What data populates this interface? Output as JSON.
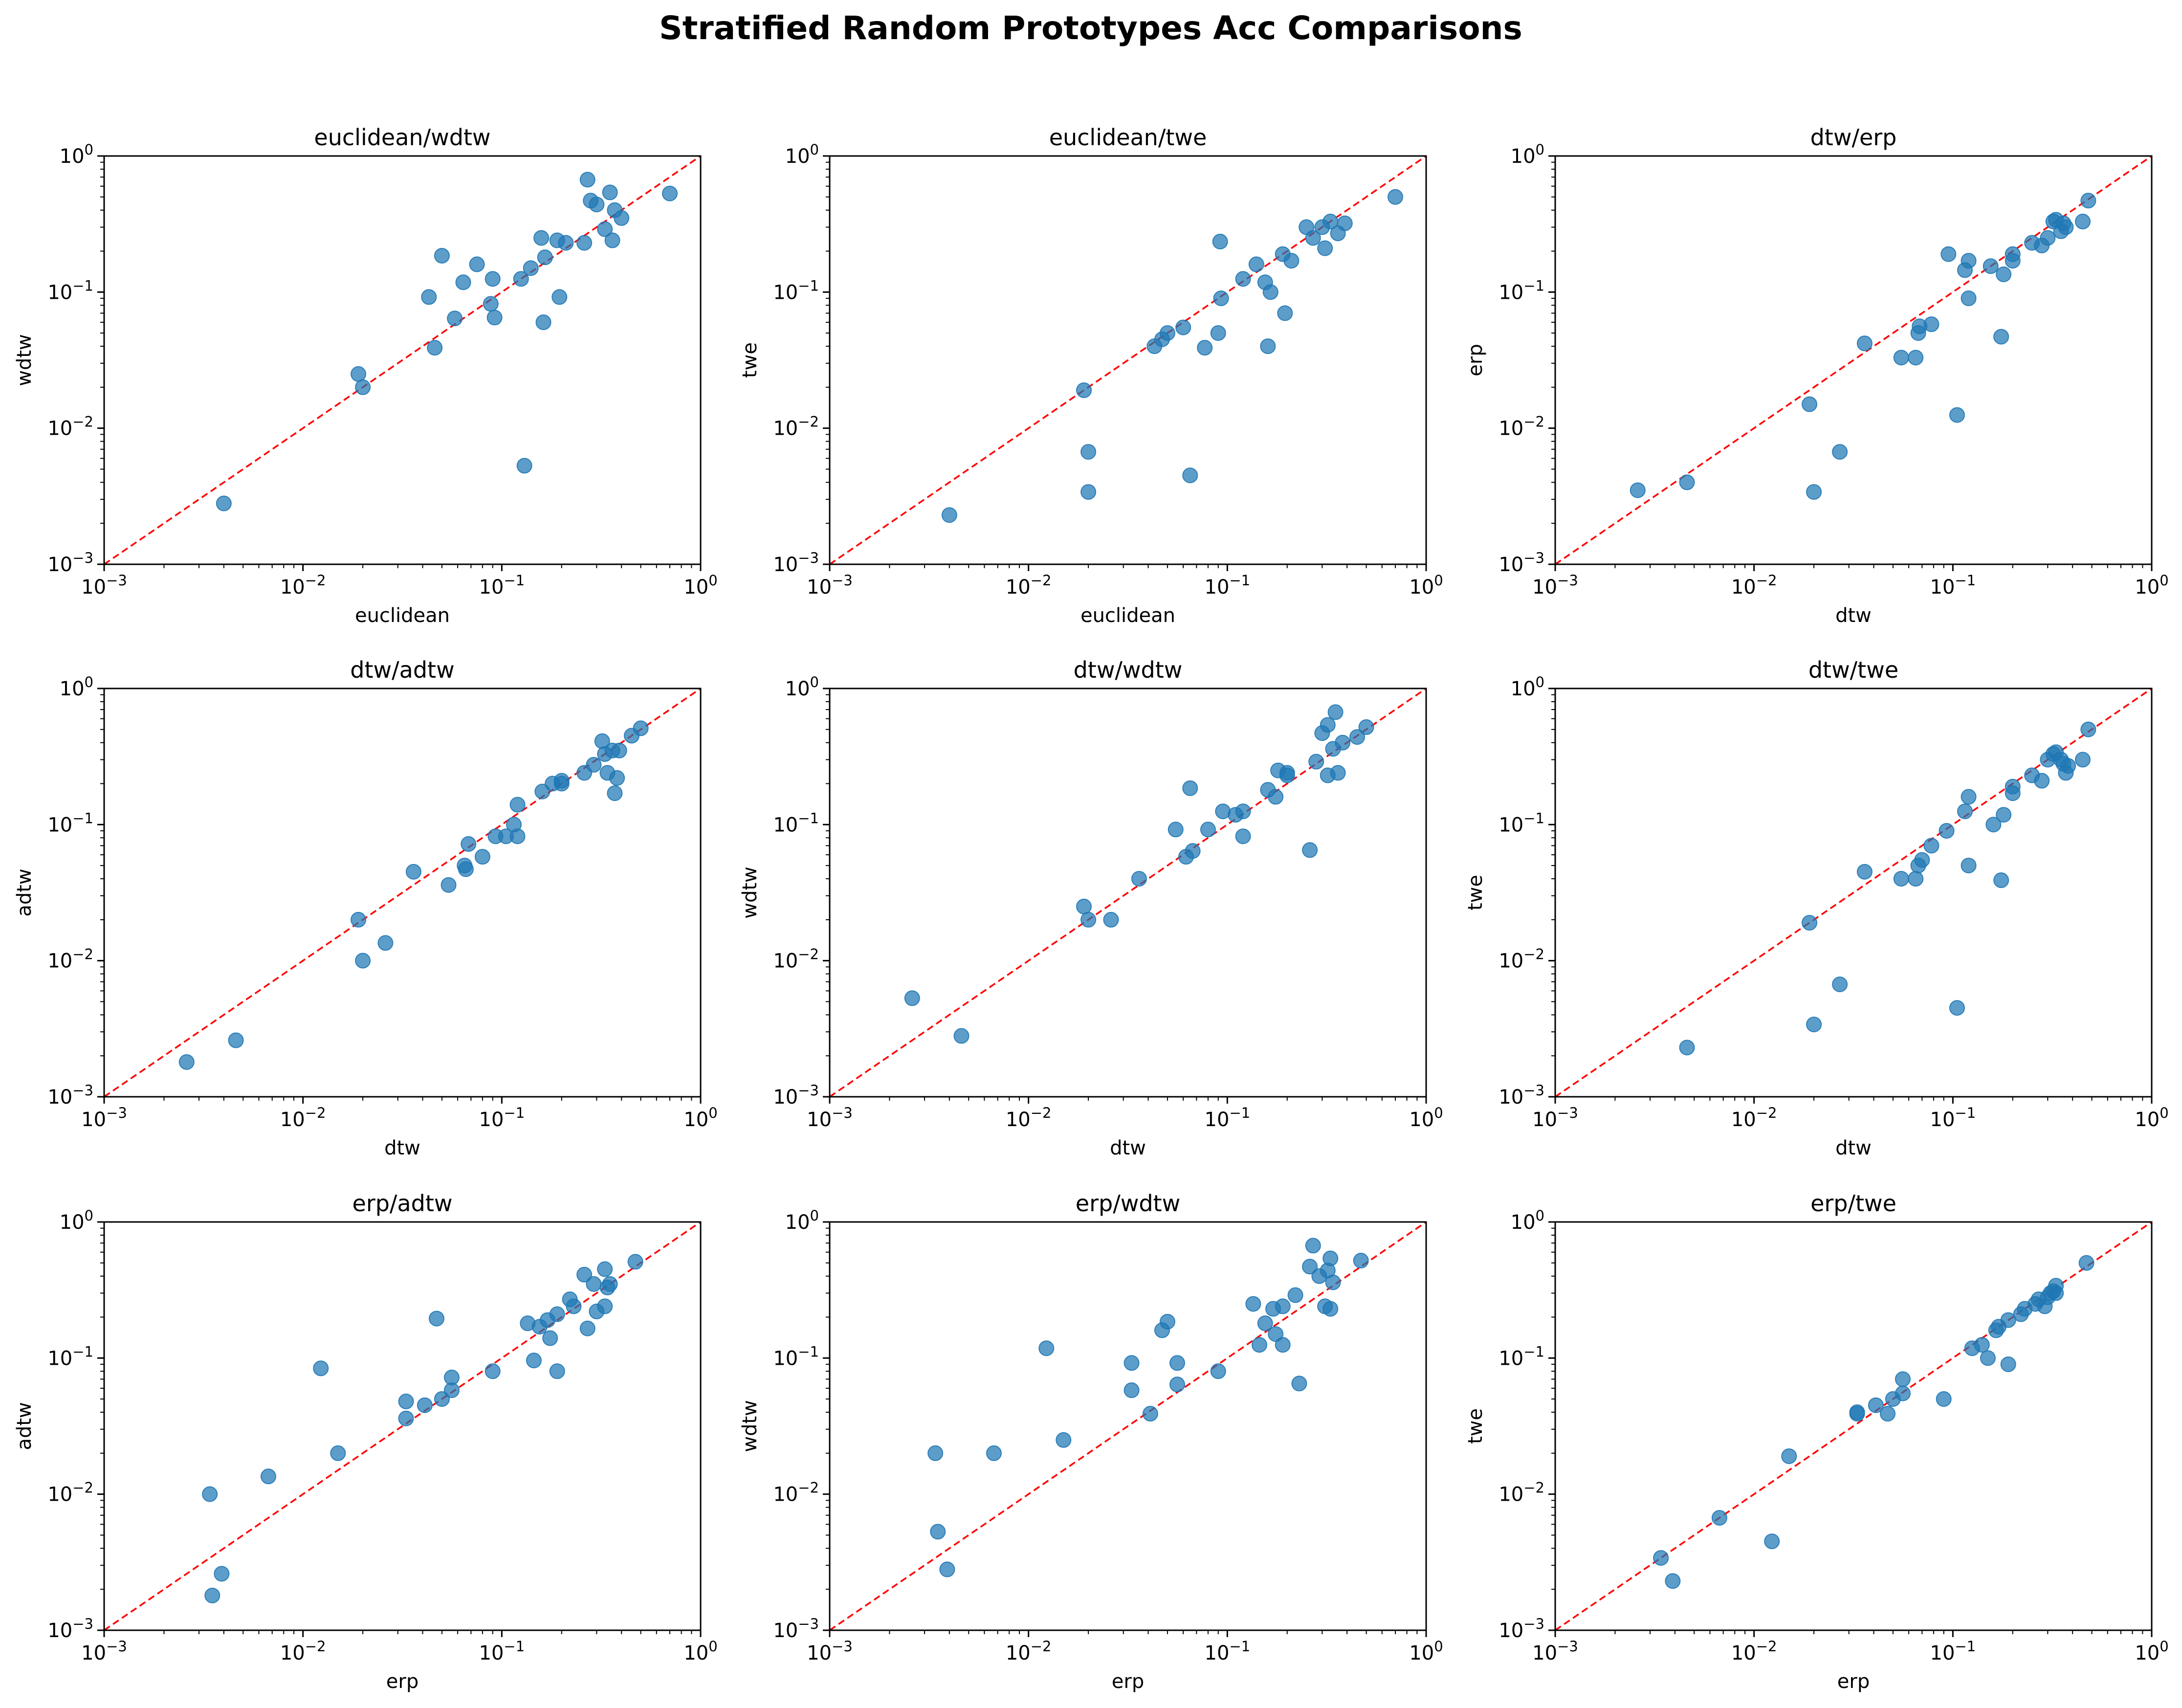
{
  "title": "Stratified Random Prototypes Acc Comparisons",
  "tick_labels": [
    {
      "base": "10",
      "exp": "−3"
    },
    {
      "base": "10",
      "exp": "−2"
    },
    {
      "base": "10",
      "exp": "−1"
    },
    {
      "base": "10",
      "exp": "0"
    }
  ],
  "colors": {
    "points": "#1f77b4",
    "reference_line": "#ff0000"
  },
  "chart_data": [
    {
      "type": "scatter",
      "title": "euclidean/wdtw",
      "xlabel": "euclidean",
      "ylabel": "wdtw",
      "xscale": "log",
      "yscale": "log",
      "xlim": [
        0.001,
        1
      ],
      "ylim": [
        0.001,
        1
      ],
      "reference_line": "y = x",
      "points": [
        [
          0.004,
          0.0028
        ],
        [
          0.019,
          0.025
        ],
        [
          0.02,
          0.02
        ],
        [
          0.043,
          0.092
        ],
        [
          0.046,
          0.039
        ],
        [
          0.05,
          0.185
        ],
        [
          0.058,
          0.064
        ],
        [
          0.064,
          0.118
        ],
        [
          0.075,
          0.16
        ],
        [
          0.088,
          0.082
        ],
        [
          0.09,
          0.125
        ],
        [
          0.092,
          0.065
        ],
        [
          0.125,
          0.125
        ],
        [
          0.13,
          0.0053
        ],
        [
          0.14,
          0.15
        ],
        [
          0.158,
          0.25
        ],
        [
          0.162,
          0.06
        ],
        [
          0.165,
          0.18
        ],
        [
          0.19,
          0.24
        ],
        [
          0.195,
          0.092
        ],
        [
          0.21,
          0.23
        ],
        [
          0.26,
          0.23
        ],
        [
          0.27,
          0.67
        ],
        [
          0.28,
          0.47
        ],
        [
          0.3,
          0.44
        ],
        [
          0.33,
          0.29
        ],
        [
          0.35,
          0.54
        ],
        [
          0.36,
          0.24
        ],
        [
          0.37,
          0.4
        ],
        [
          0.4,
          0.35
        ],
        [
          0.7,
          0.53
        ]
      ]
    },
    {
      "type": "scatter",
      "title": "euclidean/twe",
      "xlabel": "euclidean",
      "ylabel": "twe",
      "xscale": "log",
      "yscale": "log",
      "xlim": [
        0.001,
        1
      ],
      "ylim": [
        0.001,
        1
      ],
      "reference_line": "y = x",
      "points": [
        [
          0.004,
          0.0023
        ],
        [
          0.019,
          0.019
        ],
        [
          0.02,
          0.0067
        ],
        [
          0.02,
          0.0034
        ],
        [
          0.043,
          0.04
        ],
        [
          0.047,
          0.045
        ],
        [
          0.05,
          0.05
        ],
        [
          0.06,
          0.055
        ],
        [
          0.065,
          0.0045
        ],
        [
          0.077,
          0.039
        ],
        [
          0.09,
          0.05
        ],
        [
          0.092,
          0.235
        ],
        [
          0.093,
          0.09
        ],
        [
          0.12,
          0.125
        ],
        [
          0.14,
          0.16
        ],
        [
          0.155,
          0.118
        ],
        [
          0.16,
          0.04
        ],
        [
          0.165,
          0.1
        ],
        [
          0.19,
          0.19
        ],
        [
          0.195,
          0.07
        ],
        [
          0.21,
          0.17
        ],
        [
          0.25,
          0.3
        ],
        [
          0.27,
          0.25
        ],
        [
          0.3,
          0.3
        ],
        [
          0.31,
          0.21
        ],
        [
          0.33,
          0.33
        ],
        [
          0.36,
          0.27
        ],
        [
          0.39,
          0.32
        ],
        [
          0.7,
          0.5
        ]
      ]
    },
    {
      "type": "scatter",
      "title": "dtw/erp",
      "xlabel": "dtw",
      "ylabel": "erp",
      "xscale": "log",
      "yscale": "log",
      "xlim": [
        0.001,
        1
      ],
      "ylim": [
        0.001,
        1
      ],
      "reference_line": "y = x",
      "points": [
        [
          0.0026,
          0.0035
        ],
        [
          0.0046,
          0.004
        ],
        [
          0.019,
          0.015
        ],
        [
          0.02,
          0.0034
        ],
        [
          0.027,
          0.0067
        ],
        [
          0.036,
          0.042
        ],
        [
          0.055,
          0.033
        ],
        [
          0.065,
          0.033
        ],
        [
          0.067,
          0.05
        ],
        [
          0.068,
          0.056
        ],
        [
          0.078,
          0.058
        ],
        [
          0.095,
          0.19
        ],
        [
          0.105,
          0.0125
        ],
        [
          0.115,
          0.145
        ],
        [
          0.12,
          0.17
        ],
        [
          0.12,
          0.09
        ],
        [
          0.155,
          0.155
        ],
        [
          0.175,
          0.047
        ],
        [
          0.18,
          0.135
        ],
        [
          0.2,
          0.19
        ],
        [
          0.2,
          0.17
        ],
        [
          0.25,
          0.23
        ],
        [
          0.28,
          0.22
        ],
        [
          0.3,
          0.25
        ],
        [
          0.32,
          0.33
        ],
        [
          0.33,
          0.34
        ],
        [
          0.35,
          0.28
        ],
        [
          0.36,
          0.32
        ],
        [
          0.37,
          0.3
        ],
        [
          0.45,
          0.33
        ],
        [
          0.48,
          0.47
        ]
      ]
    },
    {
      "type": "scatter",
      "title": "dtw/adtw",
      "xlabel": "dtw",
      "ylabel": "adtw",
      "xscale": "log",
      "yscale": "log",
      "xlim": [
        0.001,
        1
      ],
      "ylim": [
        0.001,
        1
      ],
      "reference_line": "y = x",
      "points": [
        [
          0.0026,
          0.0018
        ],
        [
          0.0046,
          0.0026
        ],
        [
          0.019,
          0.02
        ],
        [
          0.02,
          0.01
        ],
        [
          0.026,
          0.0135
        ],
        [
          0.036,
          0.045
        ],
        [
          0.054,
          0.036
        ],
        [
          0.065,
          0.05
        ],
        [
          0.066,
          0.047
        ],
        [
          0.068,
          0.072
        ],
        [
          0.08,
          0.058
        ],
        [
          0.093,
          0.082
        ],
        [
          0.105,
          0.082
        ],
        [
          0.115,
          0.1
        ],
        [
          0.12,
          0.14
        ],
        [
          0.12,
          0.082
        ],
        [
          0.16,
          0.175
        ],
        [
          0.18,
          0.2
        ],
        [
          0.2,
          0.2
        ],
        [
          0.2,
          0.21
        ],
        [
          0.26,
          0.24
        ],
        [
          0.29,
          0.275
        ],
        [
          0.32,
          0.41
        ],
        [
          0.33,
          0.33
        ],
        [
          0.34,
          0.24
        ],
        [
          0.36,
          0.35
        ],
        [
          0.37,
          0.17
        ],
        [
          0.38,
          0.22
        ],
        [
          0.39,
          0.35
        ],
        [
          0.45,
          0.45
        ],
        [
          0.5,
          0.51
        ]
      ]
    },
    {
      "type": "scatter",
      "title": "dtw/wdtw",
      "xlabel": "dtw",
      "ylabel": "wdtw",
      "xscale": "log",
      "yscale": "log",
      "xlim": [
        0.001,
        1
      ],
      "ylim": [
        0.001,
        1
      ],
      "reference_line": "y = x",
      "points": [
        [
          0.0026,
          0.0053
        ],
        [
          0.0046,
          0.0028
        ],
        [
          0.019,
          0.025
        ],
        [
          0.02,
          0.02
        ],
        [
          0.026,
          0.02
        ],
        [
          0.036,
          0.04
        ],
        [
          0.055,
          0.092
        ],
        [
          0.062,
          0.058
        ],
        [
          0.065,
          0.185
        ],
        [
          0.067,
          0.064
        ],
        [
          0.08,
          0.092
        ],
        [
          0.095,
          0.125
        ],
        [
          0.11,
          0.118
        ],
        [
          0.12,
          0.125
        ],
        [
          0.12,
          0.082
        ],
        [
          0.16,
          0.18
        ],
        [
          0.175,
          0.16
        ],
        [
          0.18,
          0.25
        ],
        [
          0.2,
          0.24
        ],
        [
          0.2,
          0.23
        ],
        [
          0.26,
          0.065
        ],
        [
          0.28,
          0.29
        ],
        [
          0.3,
          0.47
        ],
        [
          0.32,
          0.54
        ],
        [
          0.32,
          0.23
        ],
        [
          0.34,
          0.36
        ],
        [
          0.35,
          0.67
        ],
        [
          0.36,
          0.24
        ],
        [
          0.38,
          0.4
        ],
        [
          0.45,
          0.44
        ],
        [
          0.5,
          0.52
        ]
      ]
    },
    {
      "type": "scatter",
      "title": "dtw/twe",
      "xlabel": "dtw",
      "ylabel": "twe",
      "xscale": "log",
      "yscale": "log",
      "xlim": [
        0.001,
        1
      ],
      "ylim": [
        0.001,
        1
      ],
      "reference_line": "y = x",
      "points": [
        [
          0.0046,
          0.0023
        ],
        [
          0.019,
          0.019
        ],
        [
          0.02,
          0.0034
        ],
        [
          0.027,
          0.0067
        ],
        [
          0.036,
          0.045
        ],
        [
          0.055,
          0.04
        ],
        [
          0.065,
          0.04
        ],
        [
          0.067,
          0.05
        ],
        [
          0.07,
          0.055
        ],
        [
          0.078,
          0.07
        ],
        [
          0.093,
          0.09
        ],
        [
          0.105,
          0.0045
        ],
        [
          0.115,
          0.125
        ],
        [
          0.12,
          0.16
        ],
        [
          0.12,
          0.05
        ],
        [
          0.16,
          0.1
        ],
        [
          0.175,
          0.039
        ],
        [
          0.18,
          0.118
        ],
        [
          0.2,
          0.19
        ],
        [
          0.2,
          0.17
        ],
        [
          0.25,
          0.23
        ],
        [
          0.28,
          0.21
        ],
        [
          0.3,
          0.3
        ],
        [
          0.32,
          0.33
        ],
        [
          0.33,
          0.34
        ],
        [
          0.35,
          0.3
        ],
        [
          0.36,
          0.28
        ],
        [
          0.37,
          0.24
        ],
        [
          0.38,
          0.27
        ],
        [
          0.45,
          0.3
        ],
        [
          0.48,
          0.5
        ]
      ]
    },
    {
      "type": "scatter",
      "title": "erp/adtw",
      "xlabel": "erp",
      "ylabel": "adtw",
      "xscale": "log",
      "yscale": "log",
      "xlim": [
        0.001,
        1
      ],
      "ylim": [
        0.001,
        1
      ],
      "reference_line": "y = x",
      "points": [
        [
          0.0034,
          0.01
        ],
        [
          0.0035,
          0.0018
        ],
        [
          0.0039,
          0.0026
        ],
        [
          0.0067,
          0.0135
        ],
        [
          0.0123,
          0.084
        ],
        [
          0.015,
          0.02
        ],
        [
          0.033,
          0.048
        ],
        [
          0.033,
          0.036
        ],
        [
          0.041,
          0.045
        ],
        [
          0.047,
          0.195
        ],
        [
          0.05,
          0.05
        ],
        [
          0.056,
          0.072
        ],
        [
          0.056,
          0.058
        ],
        [
          0.09,
          0.08
        ],
        [
          0.135,
          0.18
        ],
        [
          0.145,
          0.096
        ],
        [
          0.155,
          0.17
        ],
        [
          0.17,
          0.19
        ],
        [
          0.175,
          0.14
        ],
        [
          0.19,
          0.08
        ],
        [
          0.19,
          0.21
        ],
        [
          0.22,
          0.27
        ],
        [
          0.23,
          0.24
        ],
        [
          0.26,
          0.41
        ],
        [
          0.27,
          0.165
        ],
        [
          0.29,
          0.35
        ],
        [
          0.3,
          0.22
        ],
        [
          0.33,
          0.45
        ],
        [
          0.33,
          0.24
        ],
        [
          0.34,
          0.33
        ],
        [
          0.35,
          0.35
        ],
        [
          0.47,
          0.51
        ]
      ]
    },
    {
      "type": "scatter",
      "title": "erp/wdtw",
      "xlabel": "erp",
      "ylabel": "wdtw",
      "xscale": "log",
      "yscale": "log",
      "xlim": [
        0.001,
        1
      ],
      "ylim": [
        0.001,
        1
      ],
      "reference_line": "y = x",
      "points": [
        [
          0.0034,
          0.02
        ],
        [
          0.0035,
          0.0053
        ],
        [
          0.0039,
          0.0028
        ],
        [
          0.0067,
          0.02
        ],
        [
          0.0123,
          0.118
        ],
        [
          0.015,
          0.025
        ],
        [
          0.033,
          0.092
        ],
        [
          0.033,
          0.058
        ],
        [
          0.041,
          0.039
        ],
        [
          0.047,
          0.16
        ],
        [
          0.05,
          0.185
        ],
        [
          0.056,
          0.092
        ],
        [
          0.056,
          0.064
        ],
        [
          0.09,
          0.08
        ],
        [
          0.135,
          0.25
        ],
        [
          0.145,
          0.125
        ],
        [
          0.155,
          0.18
        ],
        [
          0.17,
          0.23
        ],
        [
          0.175,
          0.15
        ],
        [
          0.19,
          0.125
        ],
        [
          0.19,
          0.24
        ],
        [
          0.22,
          0.29
        ],
        [
          0.23,
          0.065
        ],
        [
          0.26,
          0.47
        ],
        [
          0.27,
          0.67
        ],
        [
          0.29,
          0.4
        ],
        [
          0.31,
          0.24
        ],
        [
          0.32,
          0.44
        ],
        [
          0.33,
          0.54
        ],
        [
          0.33,
          0.23
        ],
        [
          0.34,
          0.36
        ],
        [
          0.47,
          0.52
        ]
      ]
    },
    {
      "type": "scatter",
      "title": "erp/twe",
      "xlabel": "erp",
      "ylabel": "twe",
      "xscale": "log",
      "yscale": "log",
      "xlim": [
        0.001,
        1
      ],
      "ylim": [
        0.001,
        1
      ],
      "reference_line": "y = x",
      "points": [
        [
          0.0034,
          0.0034
        ],
        [
          0.0039,
          0.0023
        ],
        [
          0.0067,
          0.0067
        ],
        [
          0.0123,
          0.0045
        ],
        [
          0.015,
          0.019
        ],
        [
          0.033,
          0.04
        ],
        [
          0.033,
          0.039
        ],
        [
          0.041,
          0.045
        ],
        [
          0.047,
          0.039
        ],
        [
          0.05,
          0.05
        ],
        [
          0.056,
          0.055
        ],
        [
          0.056,
          0.07
        ],
        [
          0.09,
          0.05
        ],
        [
          0.125,
          0.118
        ],
        [
          0.14,
          0.125
        ],
        [
          0.15,
          0.1
        ],
        [
          0.165,
          0.16
        ],
        [
          0.17,
          0.17
        ],
        [
          0.19,
          0.09
        ],
        [
          0.19,
          0.19
        ],
        [
          0.22,
          0.21
        ],
        [
          0.23,
          0.23
        ],
        [
          0.26,
          0.25
        ],
        [
          0.27,
          0.27
        ],
        [
          0.29,
          0.24
        ],
        [
          0.3,
          0.28
        ],
        [
          0.31,
          0.3
        ],
        [
          0.32,
          0.31
        ],
        [
          0.33,
          0.3
        ],
        [
          0.33,
          0.34
        ],
        [
          0.47,
          0.5
        ]
      ]
    }
  ]
}
